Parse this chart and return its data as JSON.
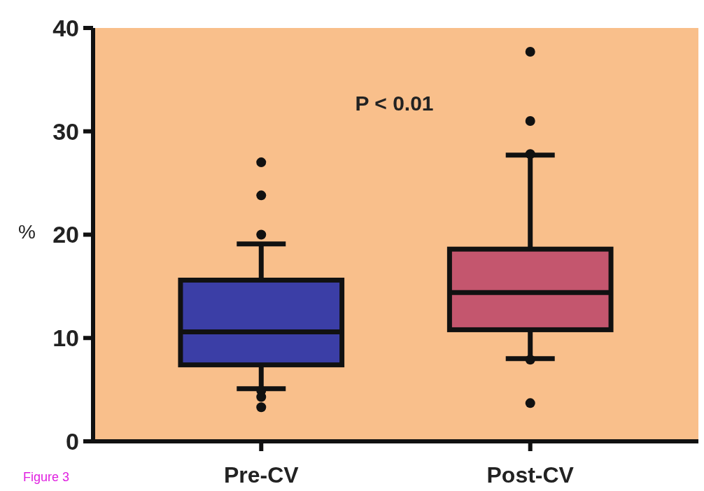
{
  "chart_data": {
    "type": "box",
    "categories": [
      "Pre-CV",
      "Post-CV"
    ],
    "colors": [
      "#3b3ea6",
      "#c4566e"
    ],
    "boxes": [
      {
        "low": 5.1,
        "q1": 7.4,
        "median": 10.6,
        "q3": 15.6,
        "high": 19.1,
        "outliers": [
          27.0,
          23.8,
          20.0,
          4.9,
          4.3,
          3.3
        ]
      },
      {
        "low": 8.0,
        "q1": 10.8,
        "median": 14.4,
        "q3": 18.6,
        "high": 27.7,
        "outliers": [
          37.7,
          31.0,
          27.8,
          7.9,
          3.7
        ]
      }
    ],
    "ylabel": "%",
    "ylim": [
      0,
      40
    ],
    "yticks": [
      0,
      10,
      20,
      30,
      40
    ],
    "annotations": [
      "P < 0.01",
      "Figure 3"
    ]
  }
}
